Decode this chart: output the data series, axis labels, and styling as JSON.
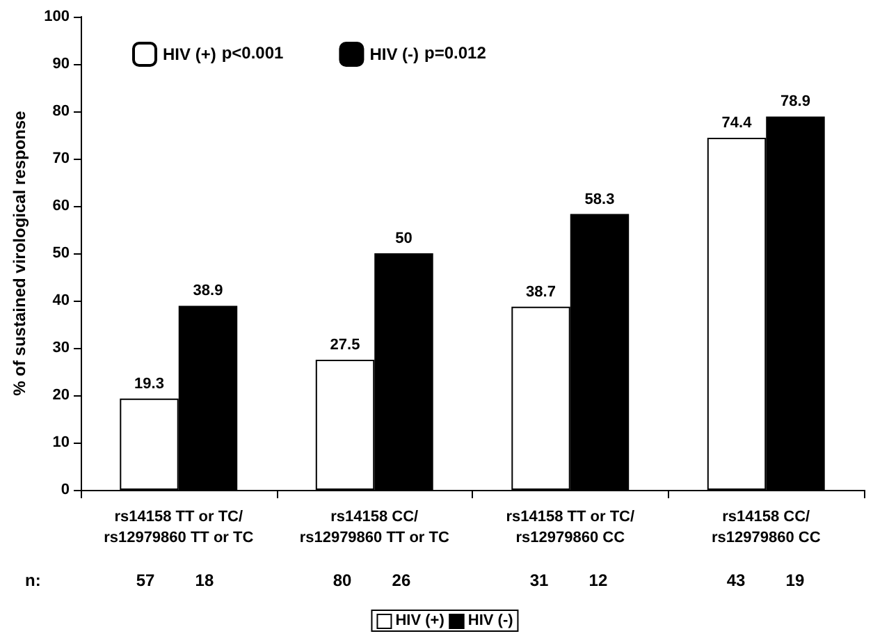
{
  "chart_data": {
    "type": "bar",
    "ylabel": "% of sustained virological response",
    "categories": [
      "rs14158 TT or TC/\nrs12979860 TT or TC",
      "rs14158 CC/\nrs12979860 TT or TC",
      "rs14158 TT or TC/\nrs12979860 CC",
      "rs14158 CC/\nrs12979860 CC"
    ],
    "series": [
      {
        "name": "HIV (+)",
        "color": "#ffffff",
        "values": [
          19.3,
          27.5,
          38.7,
          74.4
        ]
      },
      {
        "name": "HIV (-)",
        "color": "#000000",
        "values": [
          38.9,
          50,
          58.3,
          78.9
        ]
      }
    ],
    "ylim": [
      0,
      100
    ],
    "yticks": [
      0,
      10,
      20,
      30,
      40,
      50,
      60,
      70,
      80,
      90,
      100
    ],
    "data_labels": true,
    "legend": "top left",
    "grid": false,
    "annotations": [
      "p<0.001",
      "p=0.012",
      "n:",
      "57",
      "18",
      "80",
      "26",
      "31",
      "12",
      "43",
      "19"
    ]
  }
}
